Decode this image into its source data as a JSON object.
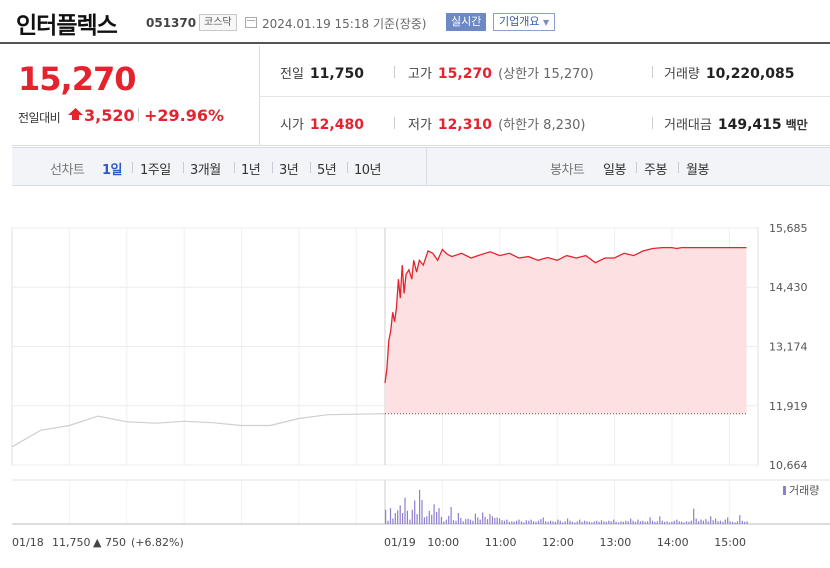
{
  "header": {
    "name": "인터플렉스",
    "code": "051370",
    "market": "코스닥",
    "datetime": "2024.01.19 15:18",
    "basis": "기준(장중)",
    "realtime_label": "실시간",
    "company_label": "기업개요"
  },
  "quote": {
    "price": "15,270",
    "change_label": "전일대비",
    "change_amount": "3,520",
    "change_pct": "+29.96%",
    "prev_label": "전일",
    "prev_value": "11,750",
    "open_label": "시가",
    "open_value": "12,480",
    "high_label": "고가",
    "high_value": "15,270",
    "upper_limit": "(상한가 15,270)",
    "low_label": "저가",
    "low_value": "12,310",
    "lower_limit": "(하한가 8,230)",
    "volume_label": "거래량",
    "volume_value": "10,220,085",
    "amount_label": "거래대금",
    "amount_value": "149,415",
    "amount_unit": "백만"
  },
  "periods": {
    "line_label": "선차트",
    "items": [
      "1일",
      "1주일",
      "3개월",
      "1년",
      "3년",
      "5년",
      "10년"
    ],
    "selected": "1일",
    "candle_label": "봉차트",
    "candle_items": [
      "일봉",
      "주봉",
      "월봉"
    ]
  },
  "colors": {
    "up": "#e5232e",
    "down": "#1a52b8",
    "prev_day_line": "#cfcfcf",
    "area_fill": "#fde1e2",
    "volume": "#8f7dd0"
  },
  "chart_data": {
    "type": "line",
    "y_ticks": [
      "15,685",
      "14,430",
      "13,174",
      "11,919",
      "10,664"
    ],
    "y_range": [
      10664,
      15685
    ],
    "x_ticks": [
      "01/19",
      "10:00",
      "11:00",
      "12:00",
      "13:00",
      "14:00",
      "15:00"
    ],
    "x_range": [
      "09:00",
      "15:30"
    ],
    "previous_close": 11750,
    "previous_day_label": {
      "date": "01/18",
      "close": "11,750",
      "change": "750",
      "change_pct": "(+6.82%)"
    },
    "previous_day_series": {
      "x": [
        "09:00",
        "09:30",
        "10:00",
        "10:30",
        "11:00",
        "11:30",
        "12:00",
        "12:30",
        "13:00",
        "13:30",
        "14:00",
        "14:30",
        "15:00",
        "15:30"
      ],
      "y": [
        11050,
        11400,
        11500,
        11700,
        11580,
        11550,
        11590,
        11560,
        11500,
        11500,
        11650,
        11730,
        11740,
        11750
      ]
    },
    "series": [
      {
        "x": [
          "09:00",
          "09:02",
          "09:04",
          "09:06",
          "09:08",
          "09:10",
          "09:12",
          "09:14",
          "09:16",
          "09:18",
          "09:20",
          "09:22",
          "09:25",
          "09:28",
          "09:30",
          "09:33",
          "09:36",
          "09:40",
          "09:45",
          "09:50",
          "09:55",
          "10:00",
          "10:05",
          "10:10",
          "10:20",
          "10:30",
          "10:40",
          "10:50",
          "11:00",
          "11:10",
          "11:20",
          "11:30",
          "11:40",
          "11:50",
          "12:00",
          "12:10",
          "12:20",
          "12:30",
          "12:40",
          "12:50",
          "13:00",
          "13:05",
          "13:10",
          "13:20",
          "13:30",
          "13:40",
          "13:50",
          "14:00",
          "14:05",
          "14:10",
          "14:20",
          "14:30",
          "14:40",
          "14:50",
          "15:00",
          "15:10",
          "15:18"
        ],
        "y": [
          12400,
          12700,
          13300,
          13500,
          13900,
          13700,
          14000,
          14600,
          14200,
          14900,
          14300,
          14700,
          14800,
          14600,
          15000,
          14750,
          15000,
          14900,
          15200,
          15150,
          15000,
          15230,
          15130,
          15080,
          15150,
          15050,
          15120,
          15180,
          15100,
          15150,
          15050,
          15080,
          15000,
          15060,
          15000,
          15100,
          15050,
          15100,
          14950,
          15050,
          15050,
          15100,
          15150,
          15100,
          15200,
          15250,
          15270,
          15270,
          15250,
          15270,
          15270,
          15270,
          15270,
          15270,
          15270,
          15270,
          15270
        ]
      }
    ],
    "volume_label": "거래량",
    "volume_x_range": [
      "09:00",
      "15:18"
    ],
    "volume": [
      26,
      6,
      29,
      10,
      20,
      25,
      34,
      20,
      48,
      24,
      8,
      26,
      43,
      18,
      62,
      44,
      12,
      14,
      24,
      17,
      36,
      22,
      29,
      13,
      5,
      8,
      15,
      31,
      7,
      6,
      20,
      11,
      5,
      9,
      10,
      8,
      6,
      19,
      12,
      8,
      21,
      13,
      9,
      18,
      14,
      11,
      12,
      10,
      7,
      6,
      8,
      4,
      5,
      4,
      6,
      8,
      5,
      3,
      7,
      6,
      8,
      5,
      4,
      6,
      9,
      12,
      5,
      4,
      6,
      5,
      4,
      8,
      6,
      3,
      5,
      10,
      6,
      4,
      3,
      5,
      8,
      4,
      6,
      5,
      4,
      3,
      5,
      6,
      4,
      7,
      5,
      4,
      6,
      5,
      8,
      4,
      3,
      5,
      4,
      6,
      5,
      10,
      6,
      4,
      8,
      5,
      6,
      4,
      5,
      12,
      6,
      4,
      5,
      14,
      6,
      4,
      5,
      3,
      4,
      6,
      8,
      5,
      4,
      3,
      5,
      4,
      6,
      28,
      10,
      5,
      8,
      6,
      9,
      5,
      14,
      7,
      10,
      5,
      6,
      4,
      8,
      12,
      5,
      4,
      3,
      5,
      16,
      6,
      4,
      5
    ]
  }
}
